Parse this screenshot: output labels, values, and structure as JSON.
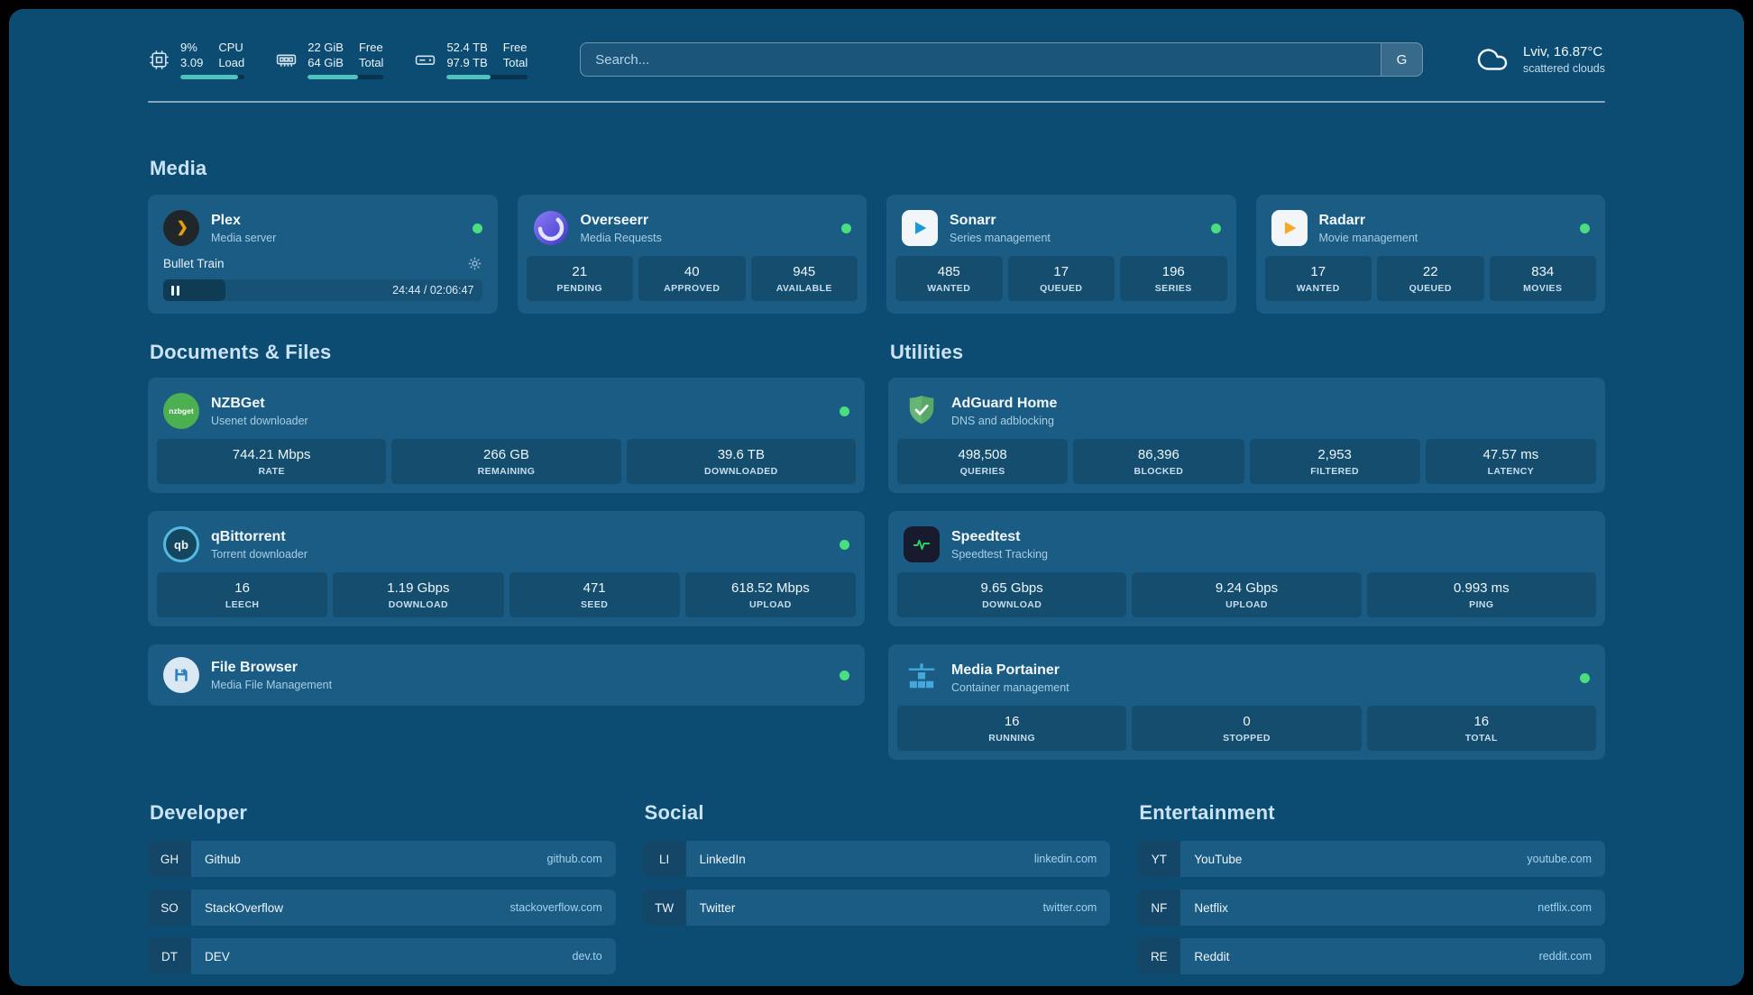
{
  "theme": {
    "background": "#0d4c72",
    "card": "#1a5c84",
    "accent": "#4fc3bc",
    "status_green": "#4ade80"
  },
  "topbar": {
    "resources": [
      {
        "icon": "cpu-icon",
        "value_top": "9%",
        "value_bottom": "3.09",
        "label_top": "CPU",
        "label_bottom": "Load",
        "bar_percent": 90
      },
      {
        "icon": "memory-icon",
        "value_top": "22 GiB",
        "value_bottom": "64 GiB",
        "label_top": "Free",
        "label_bottom": "Total",
        "bar_percent": 66
      },
      {
        "icon": "disk-icon",
        "value_top": "52.4 TB",
        "value_bottom": "97.9 TB",
        "label_top": "Free",
        "label_bottom": "Total",
        "bar_percent": 54
      }
    ],
    "search": {
      "placeholder": "Search...",
      "provider": "G"
    },
    "weather": {
      "summary": "Lviv, 16.87°C",
      "condition": "scattered clouds"
    }
  },
  "media": {
    "title": "Media",
    "plex": {
      "name": "Plex",
      "desc": "Media server",
      "now_playing": {
        "title": "Bullet Train",
        "time": "24:44 / 02:06:47",
        "progress_percent": 19.5
      }
    },
    "overseerr": {
      "name": "Overseerr",
      "desc": "Media Requests",
      "stats": [
        {
          "value": "21",
          "label": "PENDING"
        },
        {
          "value": "40",
          "label": "APPROVED"
        },
        {
          "value": "945",
          "label": "AVAILABLE"
        }
      ]
    },
    "sonarr": {
      "name": "Sonarr",
      "desc": "Series management",
      "stats": [
        {
          "value": "485",
          "label": "WANTED"
        },
        {
          "value": "17",
          "label": "QUEUED"
        },
        {
          "value": "196",
          "label": "SERIES"
        }
      ]
    },
    "radarr": {
      "name": "Radarr",
      "desc": "Movie management",
      "stats": [
        {
          "value": "17",
          "label": "WANTED"
        },
        {
          "value": "22",
          "label": "QUEUED"
        },
        {
          "value": "834",
          "label": "MOVIES"
        }
      ]
    }
  },
  "documents": {
    "title": "Documents & Files",
    "nzbget": {
      "name": "NZBGet",
      "desc": "Usenet downloader",
      "stats": [
        {
          "value": "744.21 Mbps",
          "label": "RATE"
        },
        {
          "value": "266 GB",
          "label": "REMAINING"
        },
        {
          "value": "39.6 TB",
          "label": "DOWNLOADED"
        }
      ]
    },
    "qbittorrent": {
      "name": "qBittorrent",
      "desc": "Torrent downloader",
      "stats": [
        {
          "value": "16",
          "label": "LEECH"
        },
        {
          "value": "1.19 Gbps",
          "label": "DOWNLOAD"
        },
        {
          "value": "471",
          "label": "SEED"
        },
        {
          "value": "618.52 Mbps",
          "label": "UPLOAD"
        }
      ]
    },
    "filebrowser": {
      "name": "File Browser",
      "desc": "Media File Management"
    }
  },
  "utilities": {
    "title": "Utilities",
    "adguard": {
      "name": "AdGuard Home",
      "desc": "DNS and adblocking",
      "stats": [
        {
          "value": "498,508",
          "label": "QUERIES"
        },
        {
          "value": "86,396",
          "label": "BLOCKED"
        },
        {
          "value": "2,953",
          "label": "FILTERED"
        },
        {
          "value": "47.57 ms",
          "label": "LATENCY"
        }
      ]
    },
    "speedtest": {
      "name": "Speedtest",
      "desc": "Speedtest Tracking",
      "stats": [
        {
          "value": "9.65 Gbps",
          "label": "DOWNLOAD"
        },
        {
          "value": "9.24 Gbps",
          "label": "UPLOAD"
        },
        {
          "value": "0.993 ms",
          "label": "PING"
        }
      ]
    },
    "portainer": {
      "name": "Media Portainer",
      "desc": "Container management",
      "stats": [
        {
          "value": "16",
          "label": "RUNNING"
        },
        {
          "value": "0",
          "label": "STOPPED"
        },
        {
          "value": "16",
          "label": "TOTAL"
        }
      ]
    }
  },
  "bookmarks": {
    "developer": {
      "title": "Developer",
      "items": [
        {
          "abbr": "GH",
          "name": "Github",
          "url": "github.com"
        },
        {
          "abbr": "SO",
          "name": "StackOverflow",
          "url": "stackoverflow.com"
        },
        {
          "abbr": "DT",
          "name": "DEV",
          "url": "dev.to"
        }
      ]
    },
    "social": {
      "title": "Social",
      "items": [
        {
          "abbr": "LI",
          "name": "LinkedIn",
          "url": "linkedin.com"
        },
        {
          "abbr": "TW",
          "name": "Twitter",
          "url": "twitter.com"
        }
      ]
    },
    "entertainment": {
      "title": "Entertainment",
      "items": [
        {
          "abbr": "YT",
          "name": "YouTube",
          "url": "youtube.com"
        },
        {
          "abbr": "NF",
          "name": "Netflix",
          "url": "netflix.com"
        },
        {
          "abbr": "RE",
          "name": "Reddit",
          "url": "reddit.com"
        }
      ]
    }
  }
}
